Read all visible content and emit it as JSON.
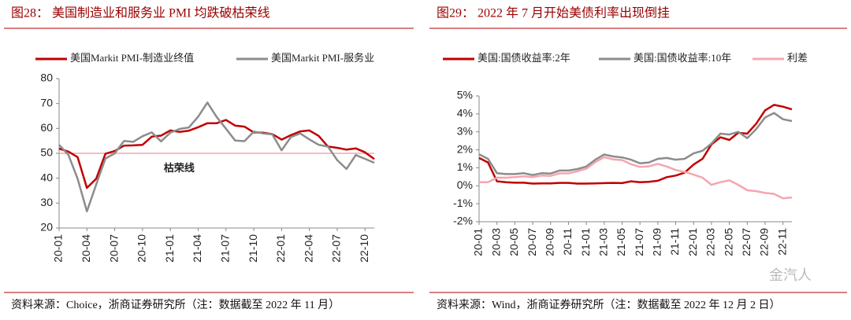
{
  "watermark": "金汽人",
  "chart_data": [
    {
      "type": "line",
      "title": "图28： 美国制造业和服务业 PMI 均跌破枯荣线",
      "source": "资料来源：Choice，浙商证券研究所（注：数据截至 2022 年 11 月）",
      "categories": [
        "20-01",
        null,
        null,
        "20-04",
        null,
        null,
        "20-07",
        null,
        null,
        "20-10",
        null,
        null,
        "21-01",
        null,
        null,
        "21-04",
        null,
        null,
        "21-07",
        null,
        null,
        "21-10",
        null,
        null,
        "22-01",
        null,
        null,
        "22-04",
        null,
        null,
        "22-07",
        null,
        null,
        "22-10",
        null
      ],
      "series": [
        {
          "name": "美国Markit PMI-制造业终值",
          "color": "#c00000",
          "values": [
            51.9,
            50.7,
            48.5,
            36.1,
            39.8,
            49.8,
            50.9,
            53.1,
            53.2,
            53.4,
            56.7,
            57.1,
            59.2,
            58.6,
            59.1,
            60.5,
            62.1,
            62.1,
            63.4,
            61.1,
            60.7,
            58.4,
            58.3,
            57.7,
            55.5,
            57.3,
            58.8,
            59.2,
            57.0,
            52.7,
            52.2,
            51.5,
            52.0,
            50.4,
            47.7
          ]
        },
        {
          "name": "美国Markit PMI-服务业",
          "color": "#8c8c8c",
          "values": [
            53.4,
            49.4,
            39.8,
            26.7,
            37.5,
            47.9,
            50.0,
            55.0,
            54.6,
            56.9,
            58.4,
            54.8,
            58.3,
            59.8,
            60.4,
            64.7,
            70.4,
            64.6,
            59.9,
            55.1,
            54.9,
            58.7,
            58.0,
            57.6,
            51.2,
            56.5,
            58.0,
            55.6,
            53.4,
            52.7,
            47.3,
            43.7,
            49.3,
            47.8,
            46.2
          ]
        }
      ],
      "reference": {
        "value": 50,
        "label": "枯荣线",
        "color": "#f4a6b0"
      },
      "ylim": [
        20,
        80
      ],
      "yticks": [
        20,
        30,
        40,
        50,
        60,
        70,
        80
      ]
    },
    {
      "type": "line",
      "title": "图29： 2022 年 7 月开始美债利率出现倒挂",
      "source": "资料来源：Wind，浙商证券研究所（注：数据截至 2022 年 12 月 2 日）",
      "categories": [
        "20-01",
        null,
        "20-03",
        null,
        "20-05",
        null,
        "20-07",
        null,
        "20-09",
        null,
        "20-11",
        null,
        "21-01",
        null,
        "21-03",
        null,
        "21-05",
        null,
        "21-07",
        null,
        "21-09",
        null,
        "21-11",
        null,
        "22-01",
        null,
        "22-03",
        null,
        "22-05",
        null,
        "22-07",
        null,
        "22-09",
        null,
        "22-11",
        null
      ],
      "series": [
        {
          "name": "美国:国债收益率:2年",
          "color": "#c00000",
          "values": [
            1.55,
            1.3,
            0.25,
            0.2,
            0.17,
            0.17,
            0.12,
            0.13,
            0.13,
            0.16,
            0.16,
            0.12,
            0.12,
            0.13,
            0.15,
            0.16,
            0.15,
            0.25,
            0.2,
            0.22,
            0.28,
            0.48,
            0.57,
            0.73,
            1.18,
            1.5,
            2.3,
            2.7,
            2.55,
            2.95,
            2.9,
            3.45,
            4.2,
            4.5,
            4.4,
            4.25
          ]
        },
        {
          "name": "美国:国债收益率:10年",
          "color": "#8c8c8c",
          "values": [
            1.75,
            1.5,
            0.7,
            0.65,
            0.65,
            0.7,
            0.6,
            0.7,
            0.68,
            0.85,
            0.85,
            0.93,
            1.07,
            1.45,
            1.74,
            1.63,
            1.58,
            1.45,
            1.25,
            1.3,
            1.5,
            1.55,
            1.45,
            1.5,
            1.8,
            1.95,
            2.35,
            2.9,
            2.85,
            3.0,
            2.65,
            3.15,
            3.8,
            4.05,
            3.7,
            3.6
          ]
        },
        {
          "name": "利差",
          "color": "#f4a6b0",
          "values": [
            0.2,
            0.2,
            0.45,
            0.45,
            0.48,
            0.53,
            0.48,
            0.57,
            0.55,
            0.69,
            0.69,
            0.81,
            0.95,
            1.32,
            1.59,
            1.47,
            1.43,
            1.2,
            1.05,
            1.08,
            1.22,
            1.07,
            0.88,
            0.77,
            0.62,
            0.45,
            0.05,
            0.2,
            0.3,
            0.05,
            -0.25,
            -0.3,
            -0.4,
            -0.45,
            -0.7,
            -0.65
          ]
        }
      ],
      "ylim": [
        -2,
        5
      ],
      "yticks": [
        {
          "value": -2,
          "label": "-2%"
        },
        {
          "value": -1,
          "label": "-1%"
        },
        {
          "value": 0,
          "label": "0%"
        },
        {
          "value": 1,
          "label": "1%"
        },
        {
          "value": 2,
          "label": "2%"
        },
        {
          "value": 3,
          "label": "3%"
        },
        {
          "value": 4,
          "label": "4%"
        },
        {
          "value": 5,
          "label": "5%"
        }
      ]
    }
  ]
}
